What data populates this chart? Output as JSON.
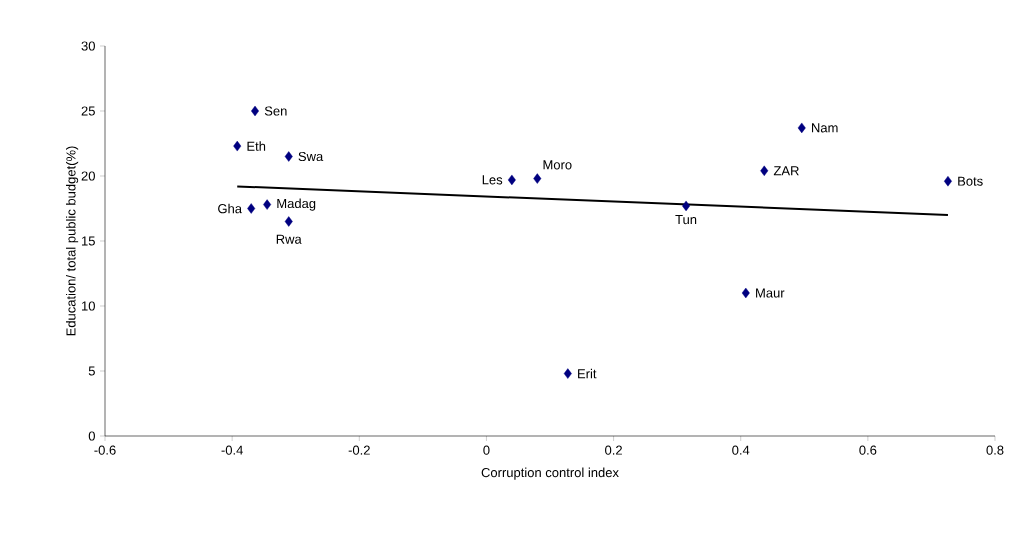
{
  "chart_data": {
    "type": "scatter",
    "xlabel": "Corruption control index",
    "ylabel": "Education/ total public budget(%)",
    "xlim": [
      -0.6,
      0.8
    ],
    "xticks": [
      -0.6,
      -0.4,
      -0.2,
      0,
      0.2,
      0.4,
      0.6,
      0.8
    ],
    "ylim": [
      0,
      30
    ],
    "yticks": [
      0,
      5,
      10,
      15,
      20,
      25,
      30
    ],
    "marker": "diamond",
    "series": [
      {
        "color": "#000080",
        "x": [
          -0.364,
          -0.392,
          -0.311,
          -0.37,
          -0.345,
          -0.311,
          0.04,
          0.08,
          0.128,
          0.314,
          0.408,
          0.437,
          0.496,
          0.726
        ],
        "values": [
          25.0,
          22.3,
          21.5,
          17.5,
          17.8,
          16.5,
          19.7,
          19.8,
          4.8,
          17.7,
          11.0,
          20.4,
          23.7,
          19.6
        ]
      },
      {
        "type": "line",
        "color": "#000000",
        "marker": "none",
        "x": [
          -0.392,
          0.726
        ],
        "values": [
          19.2,
          17.0
        ]
      }
    ],
    "annotations": [
      {
        "text": "Sen",
        "x": -0.364,
        "y": 25.0
      },
      {
        "text": "Eth",
        "x": -0.392,
        "y": 22.3
      },
      {
        "text": "Swa",
        "x": -0.311,
        "y": 21.5
      },
      {
        "text": "Gha",
        "x": -0.37,
        "y": 17.5
      },
      {
        "text": "Madag",
        "x": -0.345,
        "y": 17.8
      },
      {
        "text": "Rwa",
        "x": -0.311,
        "y": 16.5
      },
      {
        "text": "Les",
        "x": 0.04,
        "y": 19.7
      },
      {
        "text": "Moro",
        "x": 0.08,
        "y": 19.8
      },
      {
        "text": "Erit",
        "x": 0.128,
        "y": 4.8
      },
      {
        "text": "Tun",
        "x": 0.314,
        "y": 17.7
      },
      {
        "text": "Maur",
        "x": 0.408,
        "y": 11.0
      },
      {
        "text": "ZAR",
        "x": 0.437,
        "y": 20.4
      },
      {
        "text": "Nam",
        "x": 0.496,
        "y": 23.7
      },
      {
        "text": "Bots",
        "x": 0.726,
        "y": 19.6
      }
    ]
  }
}
